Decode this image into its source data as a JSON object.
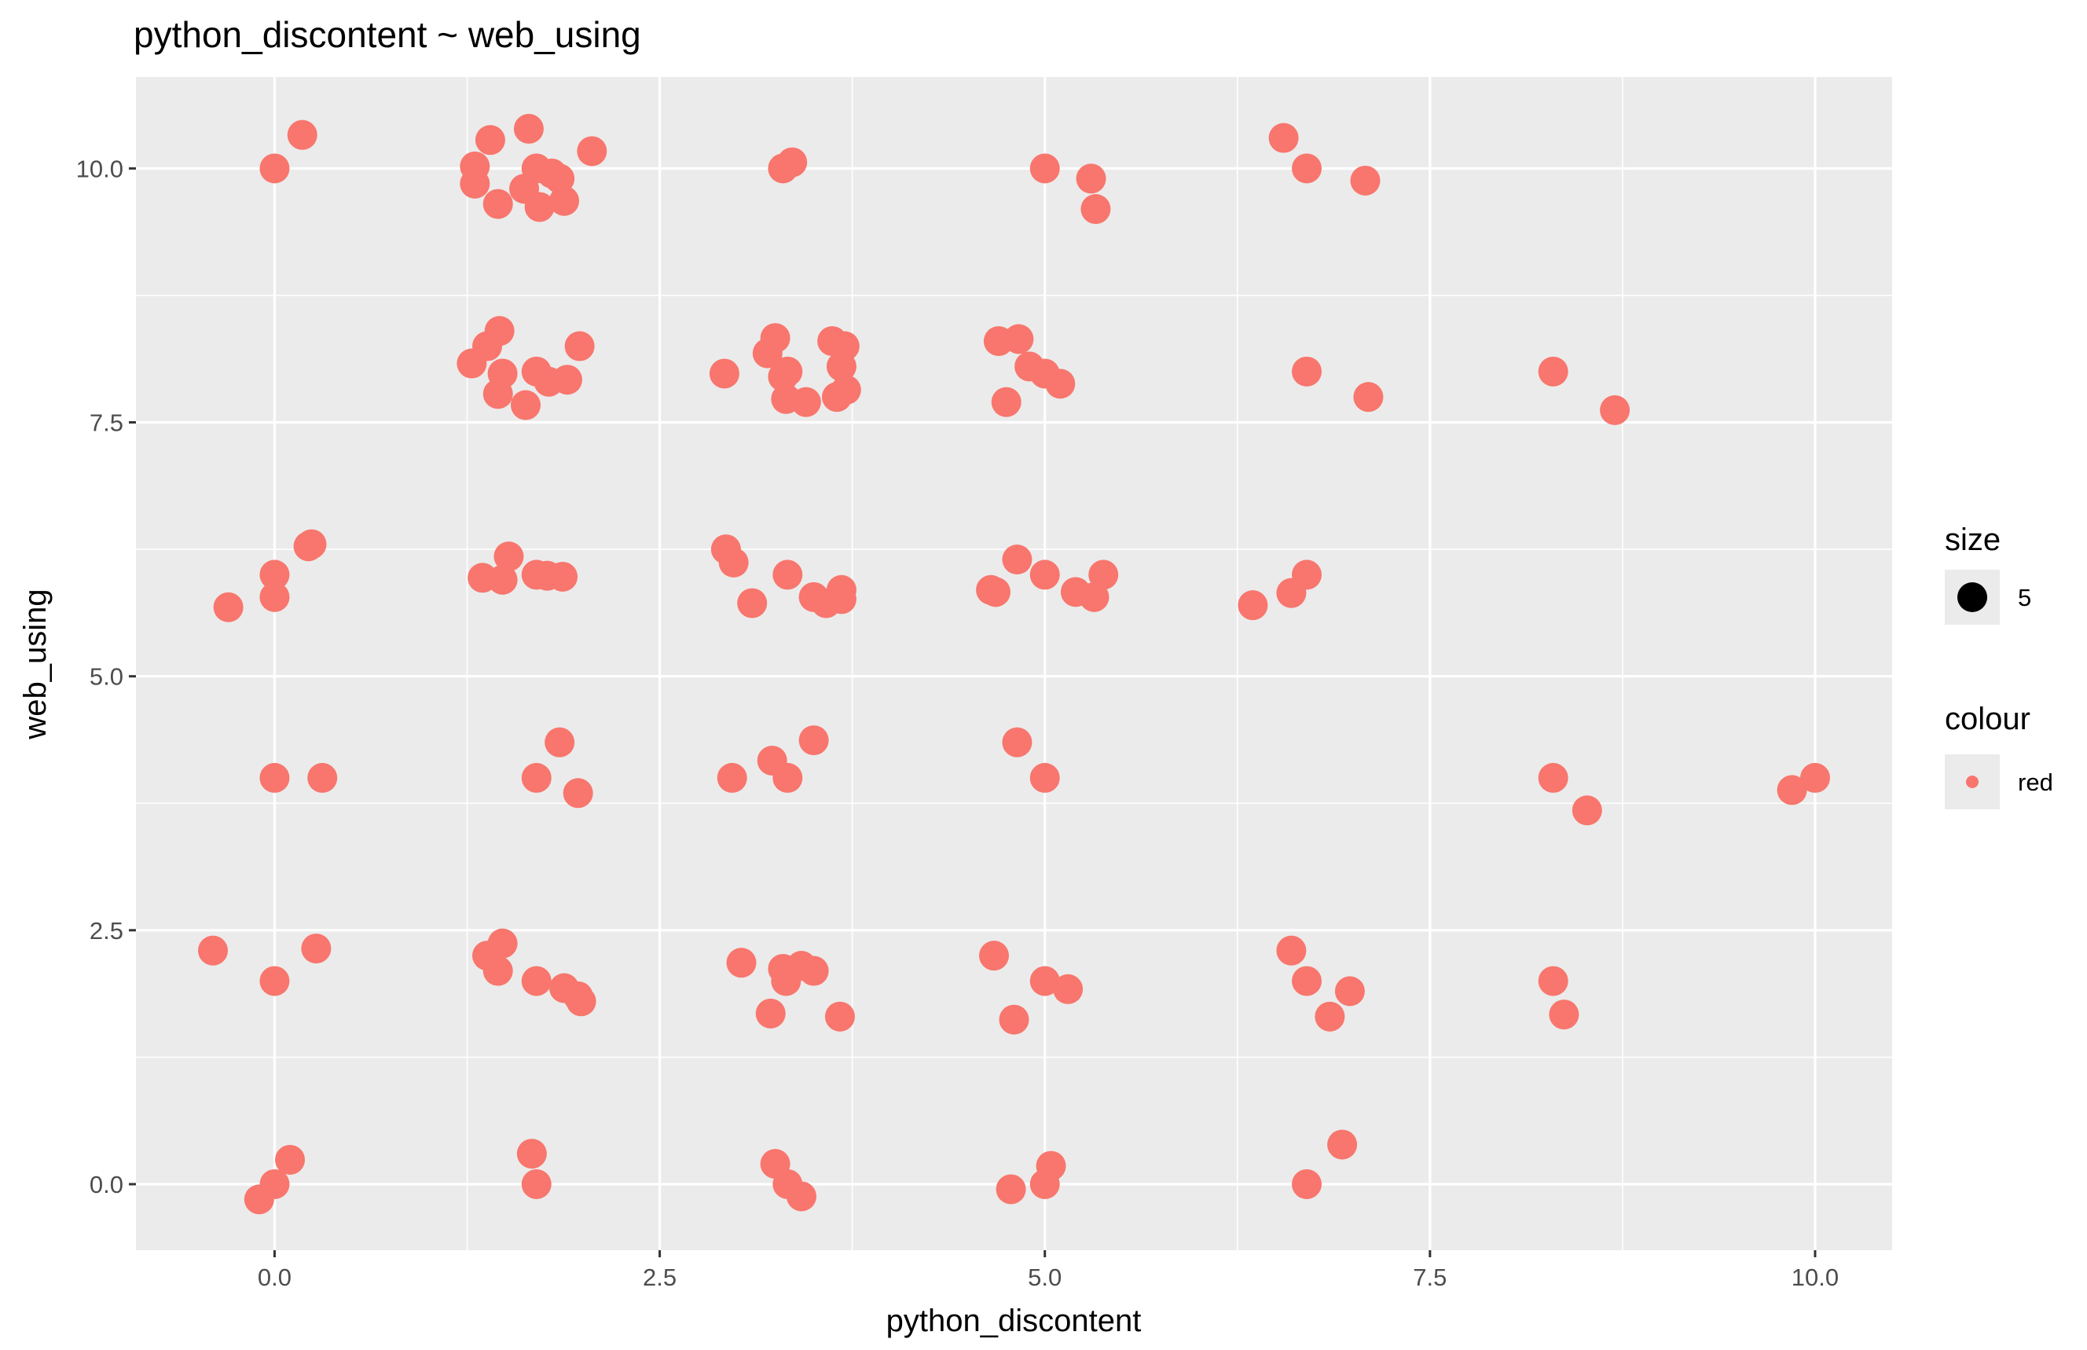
{
  "chart_data": {
    "type": "scatter",
    "title": "python_discontent ~ web_using",
    "xlabel": "python_discontent",
    "ylabel": "web_using",
    "xlim": [
      -0.9,
      10.5
    ],
    "ylim": [
      -0.65,
      10.9
    ],
    "x_ticks": [
      "0.0",
      "2.5",
      "5.0",
      "7.5",
      "10.0"
    ],
    "y_ticks": [
      "0.0",
      "2.5",
      "5.0",
      "7.5",
      "10.0"
    ],
    "grid": true,
    "panel_background": "#ebebeb",
    "point_color": "#f8766d",
    "legend_position": "right",
    "legend": {
      "size": {
        "title": "size",
        "label": "5"
      },
      "colour": {
        "title": "colour",
        "label": "red"
      }
    },
    "points": [
      [
        0.0,
        10.0
      ],
      [
        0.18,
        10.33
      ],
      [
        1.3,
        10.02
      ],
      [
        1.3,
        9.85
      ],
      [
        1.4,
        10.28
      ],
      [
        1.45,
        9.65
      ],
      [
        1.65,
        10.39
      ],
      [
        1.62,
        9.8
      ],
      [
        1.7,
        10.0
      ],
      [
        1.72,
        9.62
      ],
      [
        1.8,
        9.95
      ],
      [
        1.85,
        9.9
      ],
      [
        1.88,
        9.68
      ],
      [
        2.06,
        10.17
      ],
      [
        3.3,
        10.0
      ],
      [
        3.36,
        10.06
      ],
      [
        5.0,
        10.0
      ],
      [
        5.3,
        9.9
      ],
      [
        5.33,
        9.6
      ],
      [
        6.55,
        10.3
      ],
      [
        6.7,
        10.0
      ],
      [
        7.08,
        9.88
      ],
      [
        1.28,
        8.08
      ],
      [
        1.38,
        8.25
      ],
      [
        1.46,
        8.4
      ],
      [
        1.48,
        7.98
      ],
      [
        1.45,
        7.78
      ],
      [
        1.63,
        7.67
      ],
      [
        1.7,
        8.0
      ],
      [
        1.78,
        7.9
      ],
      [
        1.9,
        7.92
      ],
      [
        1.98,
        8.25
      ],
      [
        2.92,
        7.98
      ],
      [
        3.2,
        8.18
      ],
      [
        3.25,
        8.33
      ],
      [
        3.3,
        7.95
      ],
      [
        3.33,
        8.0
      ],
      [
        3.32,
        7.73
      ],
      [
        3.45,
        7.7
      ],
      [
        3.62,
        8.3
      ],
      [
        3.65,
        7.75
      ],
      [
        3.68,
        8.05
      ],
      [
        3.7,
        8.25
      ],
      [
        3.71,
        7.82
      ],
      [
        4.7,
        8.3
      ],
      [
        4.83,
        8.32
      ],
      [
        4.9,
        8.05
      ],
      [
        5.0,
        7.98
      ],
      [
        5.1,
        7.88
      ],
      [
        4.75,
        7.7
      ],
      [
        6.7,
        8.0
      ],
      [
        7.1,
        7.75
      ],
      [
        8.3,
        8.0
      ],
      [
        8.7,
        7.62
      ],
      [
        -0.3,
        5.68
      ],
      [
        0.0,
        6.0
      ],
      [
        0.0,
        5.78
      ],
      [
        0.22,
        6.28
      ],
      [
        0.24,
        6.3
      ],
      [
        1.35,
        5.97
      ],
      [
        1.48,
        5.95
      ],
      [
        1.52,
        6.18
      ],
      [
        1.7,
        6.0
      ],
      [
        1.77,
        5.99
      ],
      [
        1.87,
        5.98
      ],
      [
        2.93,
        6.25
      ],
      [
        2.98,
        6.12
      ],
      [
        3.1,
        5.72
      ],
      [
        3.33,
        6.0
      ],
      [
        3.5,
        5.78
      ],
      [
        3.58,
        5.72
      ],
      [
        3.68,
        5.85
      ],
      [
        3.68,
        5.76
      ],
      [
        4.65,
        5.85
      ],
      [
        4.68,
        5.83
      ],
      [
        4.82,
        6.15
      ],
      [
        5.0,
        6.0
      ],
      [
        5.2,
        5.83
      ],
      [
        5.32,
        5.78
      ],
      [
        5.38,
        6.0
      ],
      [
        6.35,
        5.7
      ],
      [
        6.6,
        5.82
      ],
      [
        6.7,
        6.0
      ],
      [
        0.0,
        4.0
      ],
      [
        0.31,
        4.0
      ],
      [
        1.7,
        4.0
      ],
      [
        1.85,
        4.35
      ],
      [
        1.97,
        3.85
      ],
      [
        2.97,
        4.0
      ],
      [
        3.23,
        4.17
      ],
      [
        3.33,
        4.0
      ],
      [
        3.5,
        4.37
      ],
      [
        4.82,
        4.35
      ],
      [
        5.0,
        4.0
      ],
      [
        8.3,
        4.0
      ],
      [
        8.52,
        3.68
      ],
      [
        9.85,
        3.88
      ],
      [
        10.0,
        4.0
      ],
      [
        -0.4,
        2.3
      ],
      [
        0.0,
        2.0
      ],
      [
        0.27,
        2.32
      ],
      [
        1.38,
        2.25
      ],
      [
        1.45,
        2.1
      ],
      [
        1.48,
        2.37
      ],
      [
        1.7,
        2.0
      ],
      [
        1.88,
        1.93
      ],
      [
        1.97,
        1.85
      ],
      [
        1.99,
        1.8
      ],
      [
        3.03,
        2.18
      ],
      [
        3.22,
        1.68
      ],
      [
        3.3,
        2.12
      ],
      [
        3.32,
        2.0
      ],
      [
        3.42,
        2.15
      ],
      [
        3.5,
        2.1
      ],
      [
        3.67,
        1.65
      ],
      [
        4.67,
        2.25
      ],
      [
        4.8,
        1.62
      ],
      [
        5.0,
        2.0
      ],
      [
        5.15,
        1.92
      ],
      [
        6.6,
        2.3
      ],
      [
        6.7,
        2.0
      ],
      [
        6.85,
        1.65
      ],
      [
        6.98,
        1.9
      ],
      [
        8.3,
        2.0
      ],
      [
        8.37,
        1.67
      ],
      [
        -0.1,
        -0.15
      ],
      [
        0.0,
        0.0
      ],
      [
        0.1,
        0.24
      ],
      [
        1.67,
        0.3
      ],
      [
        1.7,
        0.0
      ],
      [
        3.25,
        0.2
      ],
      [
        3.33,
        0.0
      ],
      [
        3.42,
        -0.12
      ],
      [
        4.78,
        -0.05
      ],
      [
        5.0,
        0.0
      ],
      [
        5.04,
        0.18
      ],
      [
        6.7,
        0.0
      ],
      [
        6.93,
        0.39
      ]
    ]
  }
}
